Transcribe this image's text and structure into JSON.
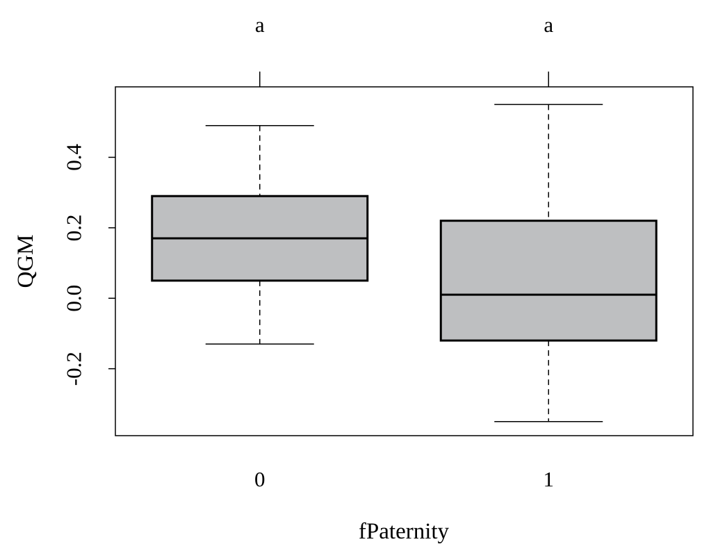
{
  "chart_data": {
    "type": "boxplot",
    "xlabel": "fPaternity",
    "ylabel": "QGM",
    "categories": [
      "0",
      "1"
    ],
    "group_letters": [
      "a",
      "a"
    ],
    "y_ticks": [
      "-0.2",
      "0.0",
      "0.2",
      "0.4"
    ],
    "ylim": [
      -0.39,
      0.6
    ],
    "box_fill": "#bebfc1",
    "boxes": [
      {
        "category": "0",
        "whisker_low": -0.13,
        "q1": 0.05,
        "median": 0.17,
        "q3": 0.29,
        "whisker_high": 0.49
      },
      {
        "category": "1",
        "whisker_low": -0.35,
        "q1": -0.12,
        "median": 0.01,
        "q3": 0.22,
        "whisker_high": 0.55
      }
    ]
  }
}
